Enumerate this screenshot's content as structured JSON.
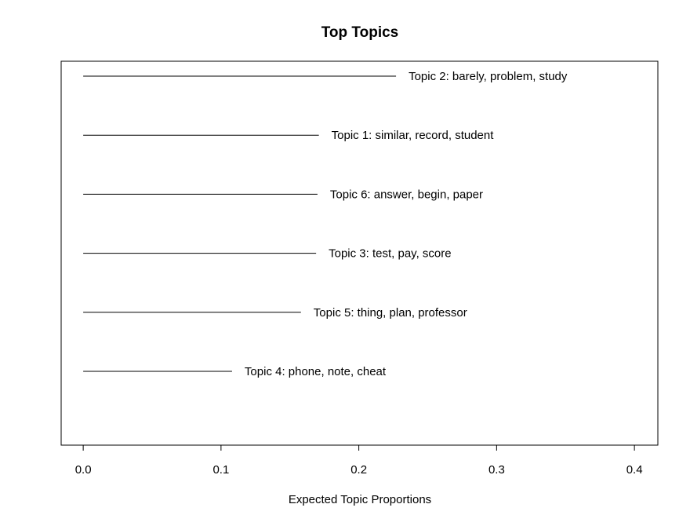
{
  "chart_data": {
    "type": "bar",
    "title": "Top Topics",
    "xlabel": "Expected Topic Proportions",
    "ylabel": "",
    "xlim": [
      -0.016,
      0.417
    ],
    "xticks": [
      0.0,
      0.1,
      0.2,
      0.3,
      0.4
    ],
    "xtick_labels": [
      "0.0",
      "0.1",
      "0.2",
      "0.3",
      "0.4"
    ],
    "grid": false,
    "legend": "none",
    "orientation": "horizontal",
    "categories": [
      "Topic 2: barely, problem, study",
      "Topic 1: similar, record, student",
      "Topic 6: answer, begin, paper",
      "Topic 3: test, pay, score",
      "Topic 5: thing, plan, professor",
      "Topic 4: phone, note, cheat"
    ],
    "values": [
      0.227,
      0.171,
      0.17,
      0.169,
      0.158,
      0.108
    ],
    "line_color": "#000000"
  }
}
